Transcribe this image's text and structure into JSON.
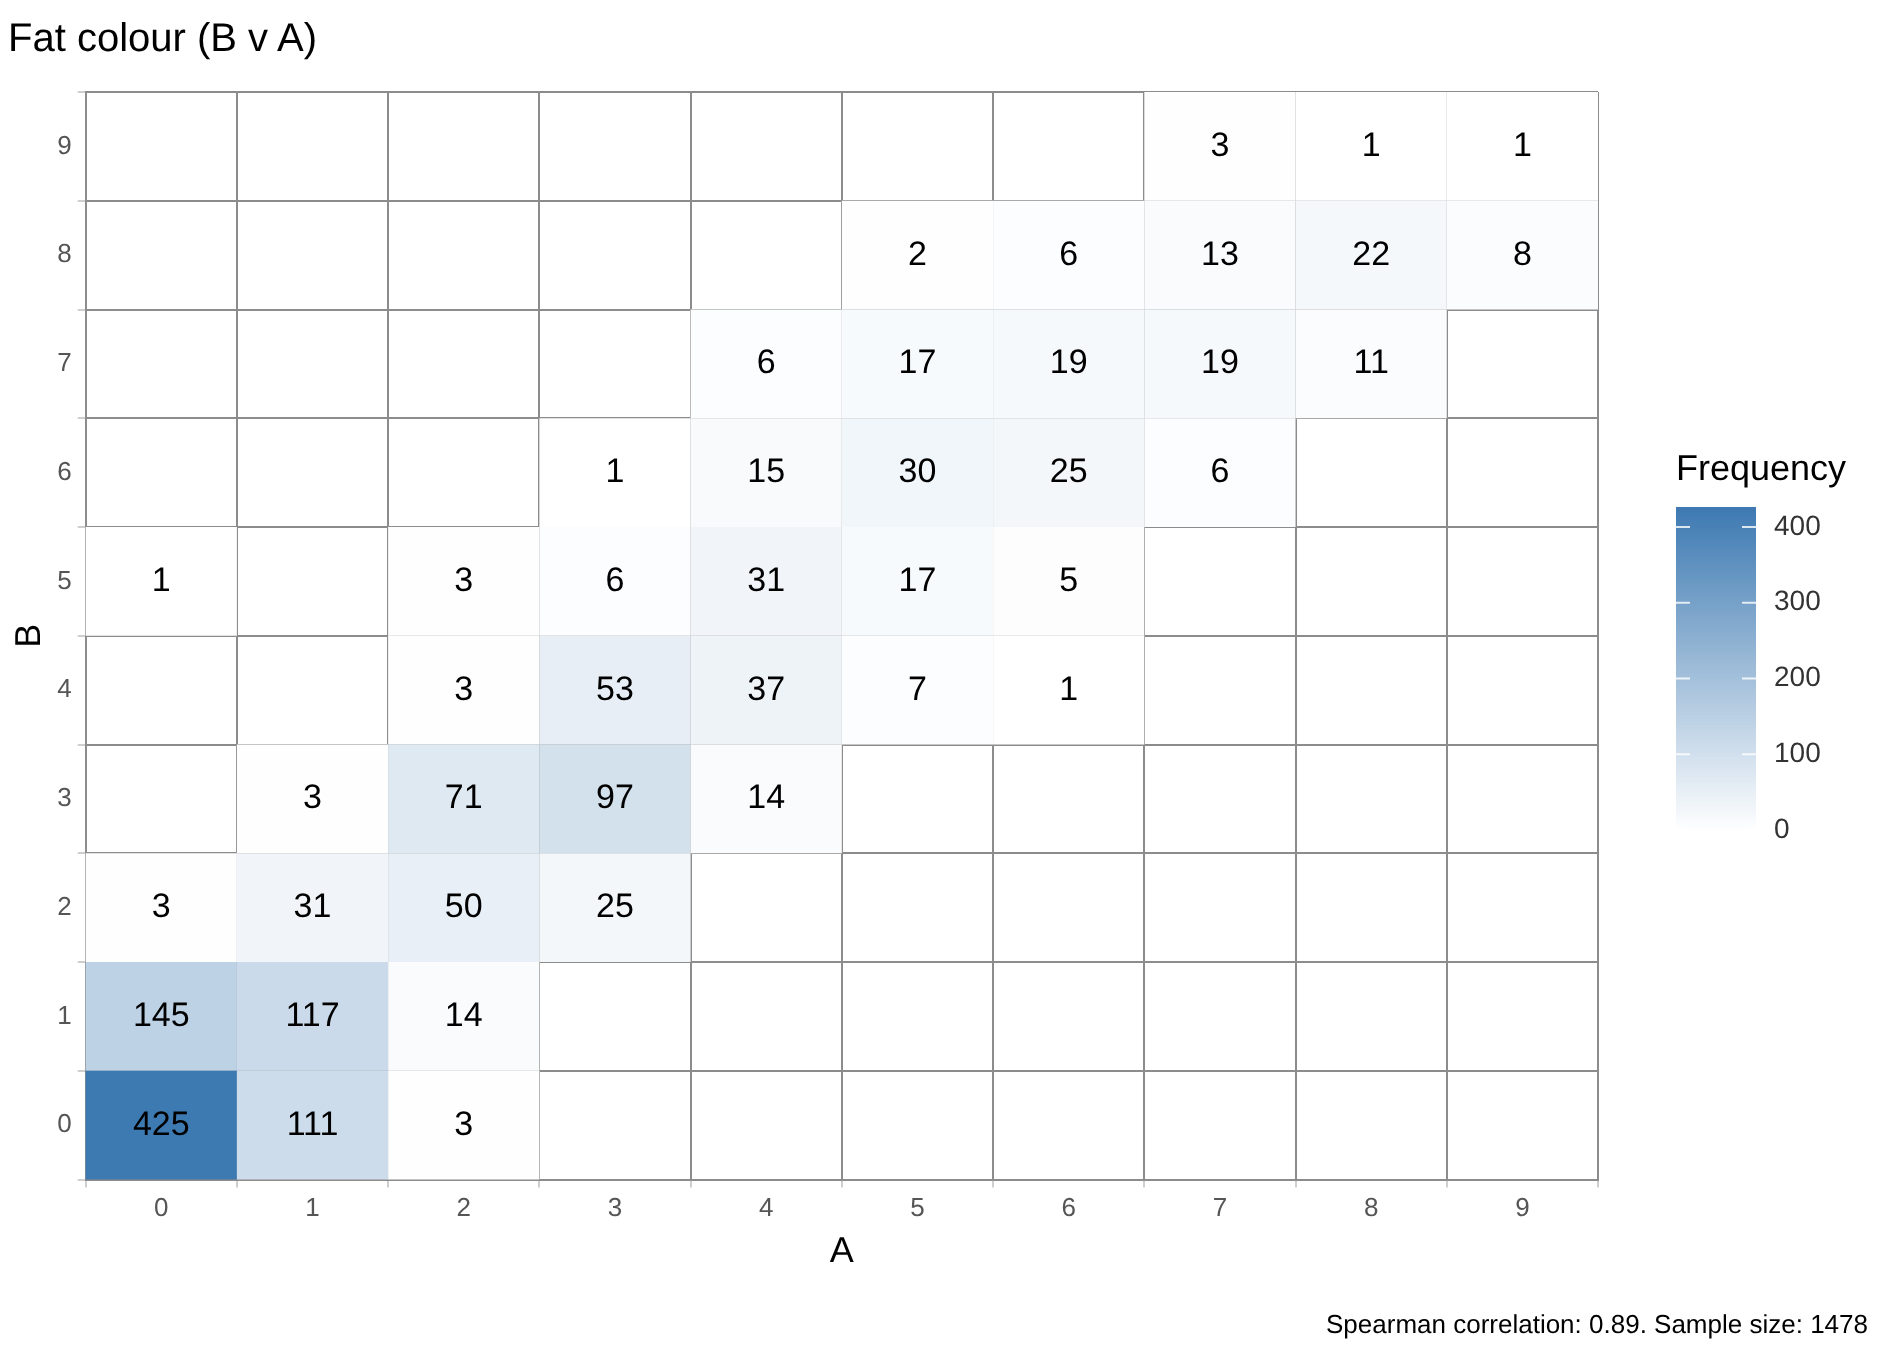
{
  "chart_data": {
    "type": "heatmap",
    "title": "Fat colour (B v A)",
    "xlabel": "A",
    "ylabel": "B",
    "clabel": "Frequency",
    "annotations": [
      "Spearman correlation: 0.89. Sample size: 1478"
    ],
    "categories": [
      "0",
      "1",
      "2",
      "3",
      "4",
      "5",
      "6",
      "7",
      "8",
      "9"
    ],
    "y_categories": [
      "9",
      "8",
      "7",
      "6",
      "5",
      "4",
      "3",
      "2",
      "1",
      "0"
    ],
    "cells": [
      [
        null,
        null,
        null,
        null,
        null,
        null,
        null,
        3,
        1,
        1
      ],
      [
        null,
        null,
        null,
        null,
        null,
        2,
        6,
        13,
        22,
        8
      ],
      [
        null,
        null,
        null,
        null,
        6,
        17,
        19,
        19,
        11,
        null
      ],
      [
        null,
        null,
        null,
        1,
        15,
        30,
        25,
        6,
        null,
        null
      ],
      [
        1,
        null,
        3,
        6,
        31,
        17,
        5,
        null,
        null,
        null
      ],
      [
        null,
        null,
        3,
        53,
        37,
        7,
        1,
        null,
        null,
        null
      ],
      [
        null,
        3,
        71,
        97,
        14,
        null,
        null,
        null,
        null,
        null
      ],
      [
        3,
        31,
        50,
        25,
        null,
        null,
        null,
        null,
        null,
        null
      ],
      [
        145,
        117,
        14,
        null,
        null,
        null,
        null,
        null,
        null,
        null
      ],
      [
        425,
        111,
        3,
        null,
        null,
        null,
        null,
        null,
        null,
        null
      ]
    ],
    "clim": [
      0,
      425
    ],
    "cticks": [
      0,
      100,
      200,
      300,
      400
    ],
    "data_labels": true,
    "grid": true
  }
}
